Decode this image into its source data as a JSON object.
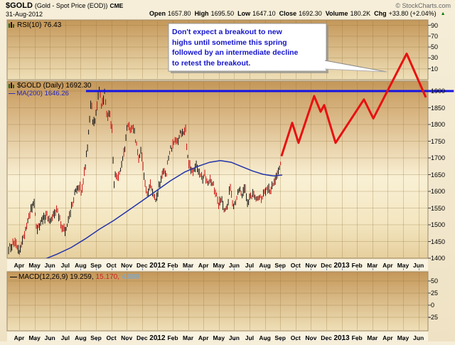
{
  "header": {
    "symbol": "$GOLD",
    "description": "(Gold - Spot Price (EOD))",
    "exchange": "CME",
    "copyright": "© StockCharts.com",
    "date": "31-Aug-2012",
    "quote": [
      {
        "label": "Open",
        "value": "1657.80"
      },
      {
        "label": "High",
        "value": "1695.50"
      },
      {
        "label": "Low",
        "value": "1647.10"
      },
      {
        "label": "Close",
        "value": "1692.30"
      },
      {
        "label": "Volume",
        "value": "180.2K"
      },
      {
        "label": "Chg",
        "value": "+33.80 (+2.04%)"
      }
    ],
    "change_direction": "up",
    "up_triangle": "▲"
  },
  "panes": {
    "rsi": {
      "label": "RSI(10) 76.43"
    },
    "price": {
      "label": "$GOLD (Daily) 1692.30",
      "ma_dash": "—",
      "ma_label": "MA(200) 1646.26"
    },
    "macd": {
      "dash": "—",
      "label_prefix": "MACD(12,26,9)",
      "value_main": "19.259,",
      "value_signal": "15.170,",
      "value_hist": "4.089"
    }
  },
  "annotation": {
    "lines": [
      "Don't expect a breakout to new",
      "highs until sometime this spring",
      "followed by an intermediate decline",
      "to retest the breakout."
    ]
  },
  "colors": {
    "resistance_blue": "#1414e6",
    "projection_red": "#e81010",
    "ma_blue": "#2233aa",
    "candle_red": "#cc1111",
    "candle_black": "#111111",
    "annotation_text_blue": "#1414cc",
    "change_green": "#0a7a0a"
  },
  "chart_data": {
    "type": "candlestick",
    "title": "$GOLD Gold Spot Price (EOD) daily chart with hand-drawn breakout projection",
    "x_unit": "months since Apr-2011 tick",
    "x_tick_labels": [
      {
        "label": "Apr",
        "bold": false
      },
      {
        "label": "May",
        "bold": false
      },
      {
        "label": "Jun",
        "bold": false
      },
      {
        "label": "Jul",
        "bold": false
      },
      {
        "label": "Aug",
        "bold": false
      },
      {
        "label": "Sep",
        "bold": false
      },
      {
        "label": "Oct",
        "bold": false
      },
      {
        "label": "Nov",
        "bold": false
      },
      {
        "label": "Dec",
        "bold": false
      },
      {
        "label": "2012",
        "bold": true
      },
      {
        "label": "Feb",
        "bold": false
      },
      {
        "label": "Mar",
        "bold": false
      },
      {
        "label": "Apr",
        "bold": false
      },
      {
        "label": "May",
        "bold": false
      },
      {
        "label": "Jun",
        "bold": false
      },
      {
        "label": "Jul",
        "bold": false
      },
      {
        "label": "Aug",
        "bold": false
      },
      {
        "label": "Sep",
        "bold": false
      },
      {
        "label": "Oct",
        "bold": false
      },
      {
        "label": "Nov",
        "bold": false
      },
      {
        "label": "Dec",
        "bold": false
      },
      {
        "label": "2013",
        "bold": true
      },
      {
        "label": "Feb",
        "bold": false
      },
      {
        "label": "Mar",
        "bold": false
      },
      {
        "label": "Apr",
        "bold": false
      },
      {
        "label": "May",
        "bold": false
      },
      {
        "label": "Jun",
        "bold": false
      }
    ],
    "price_ticks": [
      1900,
      1850,
      1800,
      1750,
      1700,
      1650,
      1600,
      1550,
      1500,
      1450,
      1400
    ],
    "rsi_ticks": [
      90,
      70,
      50,
      30,
      10
    ],
    "macd_ticks": [
      50,
      25,
      0,
      -25
    ],
    "rsi_value": 76.43,
    "ma200_value": 1646.26,
    "last_close": 1692.3,
    "macd_values": [
      19.259,
      15.17,
      4.089
    ],
    "price_path_monthly": [
      [
        -0.69,
        1430
      ],
      [
        -0.32,
        1445
      ],
      [
        0,
        1420
      ],
      [
        0.37,
        1475
      ],
      [
        0.74,
        1540
      ],
      [
        0.97,
        1565
      ],
      [
        1.16,
        1480
      ],
      [
        1.44,
        1510
      ],
      [
        1.76,
        1530
      ],
      [
        2.08,
        1515
      ],
      [
        2.45,
        1545
      ],
      [
        2.73,
        1500
      ],
      [
        3.01,
        1485
      ],
      [
        3.29,
        1530
      ],
      [
        3.61,
        1590
      ],
      [
        3.89,
        1615
      ],
      [
        4.07,
        1600
      ],
      [
        4.26,
        1660
      ],
      [
        4.49,
        1750
      ],
      [
        4.68,
        1880
      ],
      [
        4.81,
        1790
      ],
      [
        5.0,
        1830
      ],
      [
        5.23,
        1920
      ],
      [
        5.37,
        1850
      ],
      [
        5.56,
        1895
      ],
      [
        5.74,
        1815
      ],
      [
        5.88,
        1835
      ],
      [
        6.06,
        1780
      ],
      [
        6.16,
        1620
      ],
      [
        6.3,
        1655
      ],
      [
        6.48,
        1640
      ],
      [
        6.67,
        1680
      ],
      [
        6.85,
        1720
      ],
      [
        7.04,
        1795
      ],
      [
        7.22,
        1785
      ],
      [
        7.41,
        1800
      ],
      [
        7.59,
        1750
      ],
      [
        7.78,
        1700
      ],
      [
        7.96,
        1720
      ],
      [
        8.15,
        1640
      ],
      [
        8.33,
        1590
      ],
      [
        8.52,
        1620
      ],
      [
        8.7,
        1595
      ],
      [
        8.89,
        1565
      ],
      [
        9.03,
        1600
      ],
      [
        9.21,
        1635
      ],
      [
        9.4,
        1660
      ],
      [
        9.58,
        1650
      ],
      [
        9.77,
        1720
      ],
      [
        9.95,
        1730
      ],
      [
        10.14,
        1750
      ],
      [
        10.32,
        1745
      ],
      [
        10.51,
        1780
      ],
      [
        10.69,
        1770
      ],
      [
        10.83,
        1790
      ],
      [
        10.97,
        1700
      ],
      [
        11.16,
        1670
      ],
      [
        11.34,
        1650
      ],
      [
        11.53,
        1680
      ],
      [
        11.71,
        1660
      ],
      [
        11.9,
        1640
      ],
      [
        12.08,
        1650
      ],
      [
        12.27,
        1630
      ],
      [
        12.45,
        1640
      ],
      [
        12.64,
        1620
      ],
      [
        12.82,
        1590
      ],
      [
        13.01,
        1560
      ],
      [
        13.19,
        1580
      ],
      [
        13.38,
        1540
      ],
      [
        13.56,
        1555
      ],
      [
        13.75,
        1620
      ],
      [
        13.93,
        1560
      ],
      [
        14.12,
        1565
      ],
      [
        14.31,
        1610
      ],
      [
        14.49,
        1590
      ],
      [
        14.68,
        1615
      ],
      [
        14.86,
        1570
      ],
      [
        15.05,
        1580
      ],
      [
        15.23,
        1590
      ],
      [
        15.42,
        1575
      ],
      [
        15.6,
        1590
      ],
      [
        15.79,
        1580
      ],
      [
        15.97,
        1600
      ],
      [
        16.16,
        1615
      ],
      [
        16.34,
        1605
      ],
      [
        16.53,
        1625
      ],
      [
        16.71,
        1640
      ],
      [
        16.9,
        1655
      ],
      [
        17.08,
        1690
      ]
    ],
    "ma200_path": [
      [
        1.53,
        1395
      ],
      [
        2.45,
        1412
      ],
      [
        3.38,
        1432
      ],
      [
        4.31,
        1458
      ],
      [
        5.23,
        1487
      ],
      [
        6.16,
        1513
      ],
      [
        7.08,
        1542
      ],
      [
        8.01,
        1572
      ],
      [
        8.94,
        1602
      ],
      [
        9.86,
        1632
      ],
      [
        10.79,
        1658
      ],
      [
        11.71,
        1676
      ],
      [
        12.41,
        1687
      ],
      [
        13.1,
        1692
      ],
      [
        13.8,
        1687
      ],
      [
        14.49,
        1674
      ],
      [
        15.19,
        1661
      ],
      [
        15.88,
        1651
      ],
      [
        16.57,
        1646
      ],
      [
        17.13,
        1649
      ]
    ],
    "projection_path": [
      [
        17.08,
        1705
      ],
      [
        17.78,
        1805
      ],
      [
        18.19,
        1745
      ],
      [
        19.21,
        1885
      ],
      [
        19.63,
        1838
      ],
      [
        19.86,
        1858
      ],
      [
        20.6,
        1745
      ],
      [
        22.45,
        1875
      ],
      [
        23.06,
        1818
      ],
      [
        25.23,
        2012
      ],
      [
        26.48,
        1881
      ]
    ],
    "resistance_line": {
      "price": 1900,
      "start_month_index": 4.35,
      "end_month_index": 28.3
    },
    "legend_position": "top-left-per-pane",
    "grid": true
  }
}
